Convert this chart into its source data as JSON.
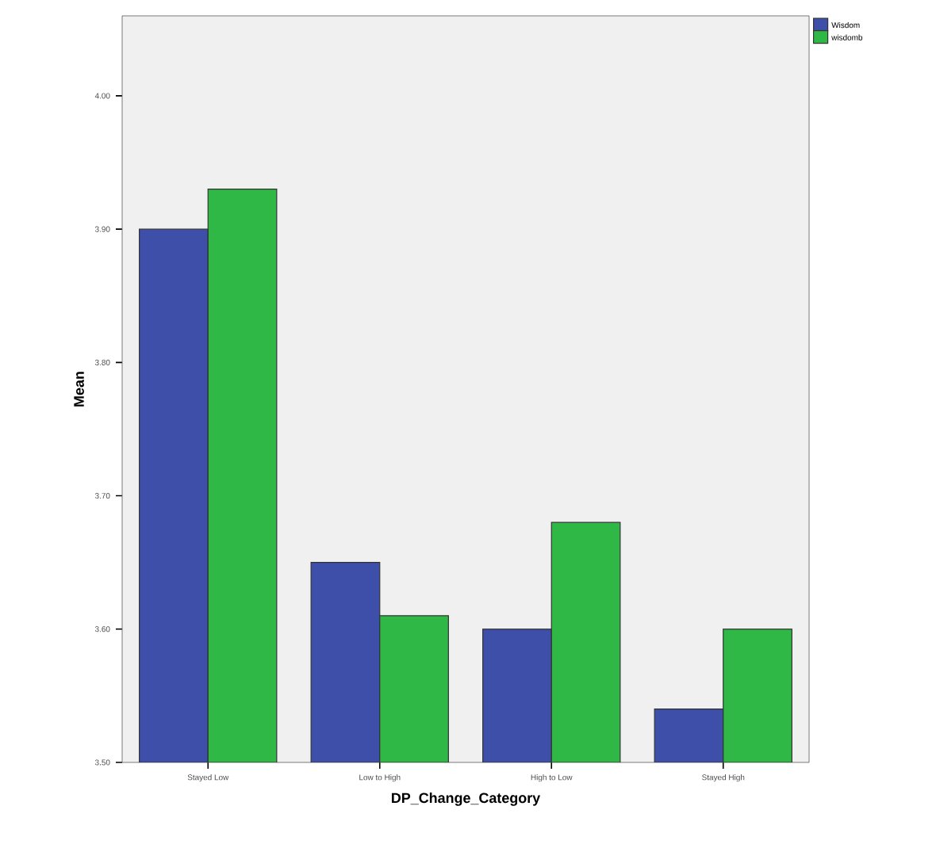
{
  "chart_data": {
    "type": "bar",
    "xlabel": "DP_Change_Category",
    "ylabel": "Mean",
    "categories": [
      "Stayed Low",
      "Low to High",
      "High to Low",
      "Stayed High"
    ],
    "series": [
      {
        "name": "Wisdom",
        "color": "#3d4fa8",
        "values": [
          3.9,
          3.65,
          3.6,
          3.54
        ]
      },
      {
        "name": "wisdomb",
        "color": "#2fb845",
        "values": [
          3.93,
          3.61,
          3.68,
          3.6
        ]
      }
    ],
    "ylim": [
      3.5,
      4.06
    ],
    "yticks": [
      {
        "value": 3.5,
        "label": "3.50"
      },
      {
        "value": 3.6,
        "label": "3.60"
      },
      {
        "value": 3.7,
        "label": "3.70"
      },
      {
        "value": 3.8,
        "label": "3.80"
      },
      {
        "value": 3.9,
        "label": "3.90"
      },
      {
        "value": 4.0,
        "label": "4.00"
      }
    ],
    "legend": "top right"
  }
}
